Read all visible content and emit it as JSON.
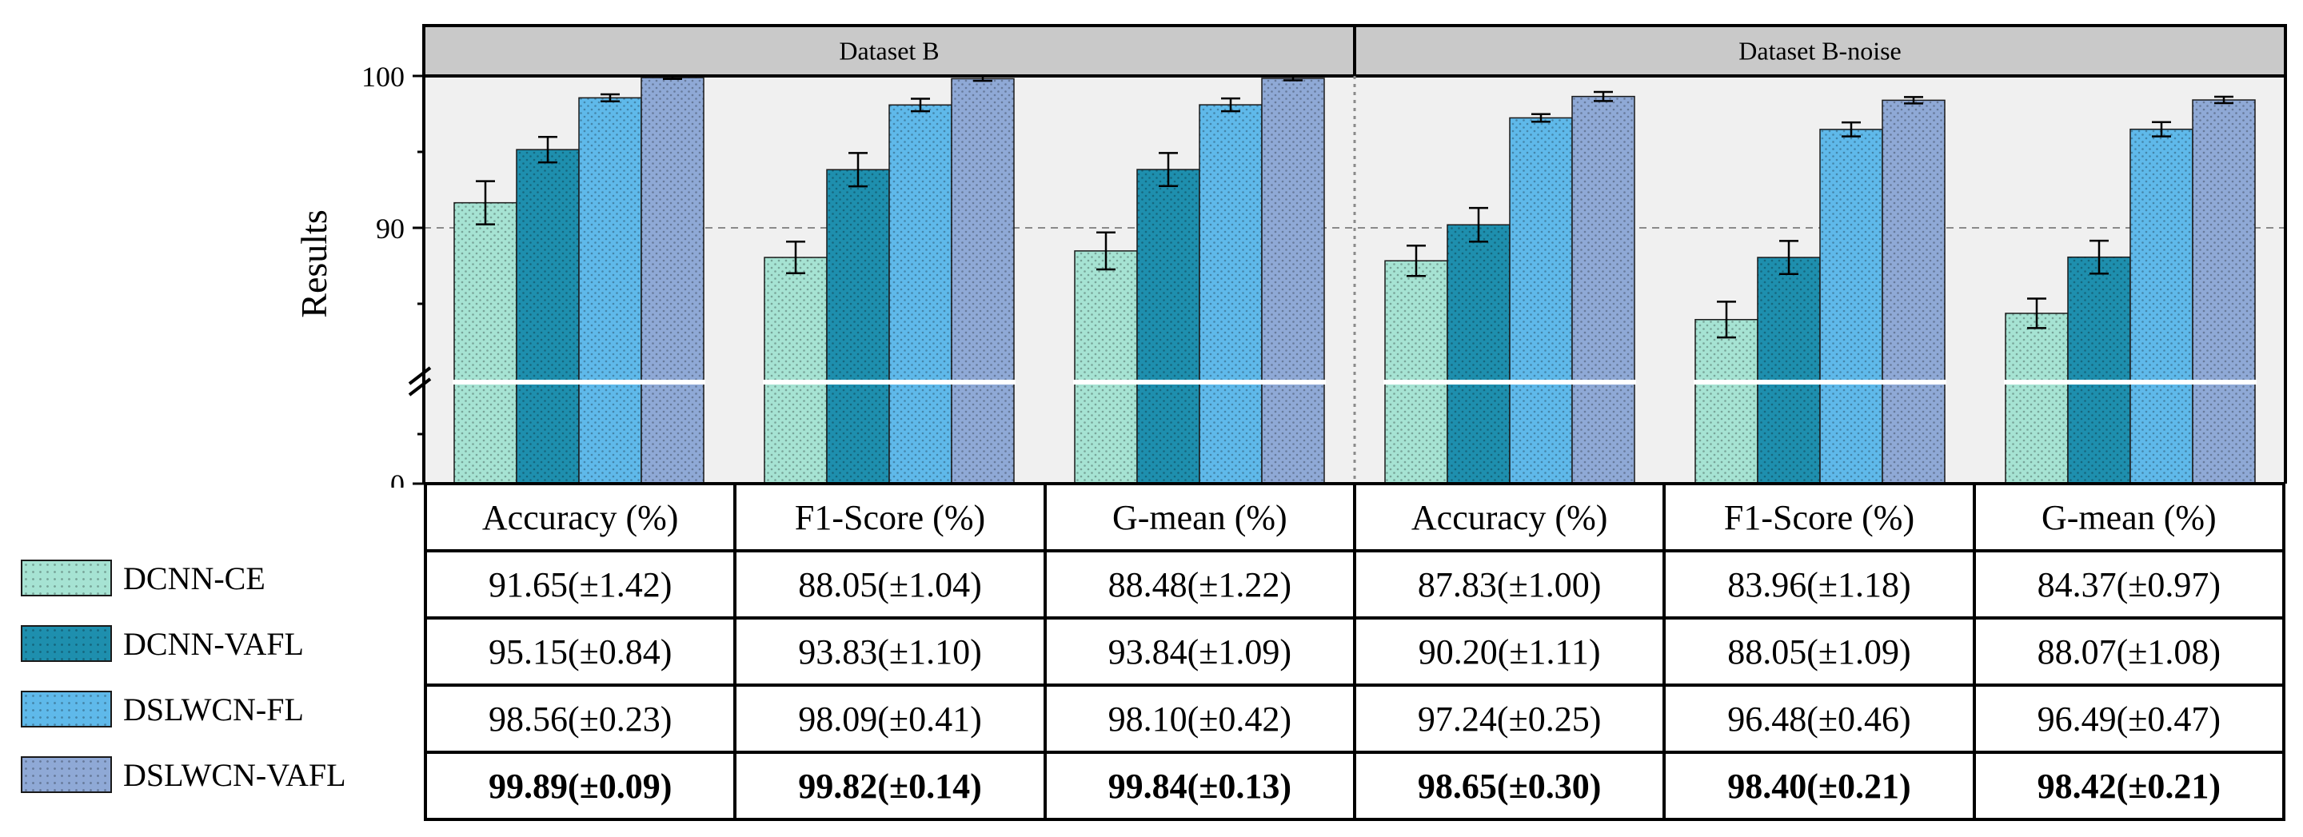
{
  "chart_data": {
    "type": "bar",
    "ylabel": "Results",
    "y_ticks": [
      "0",
      "90",
      "100"
    ],
    "y_axis_break": [
      0,
      80
    ],
    "ylim": [
      80,
      100
    ],
    "reference_line": 90,
    "panels": [
      {
        "title": "Dataset B",
        "categories": [
          "Accuracy (%)",
          "F1-Score (%)",
          "G-mean (%)"
        ],
        "series": [
          {
            "name": "DCNN-CE",
            "values": [
              91.65,
              88.05,
              88.48
            ],
            "errors": [
              1.42,
              1.04,
              1.22
            ]
          },
          {
            "name": "DCNN-VAFL",
            "values": [
              95.15,
              93.83,
              93.84
            ],
            "errors": [
              0.84,
              1.1,
              1.09
            ]
          },
          {
            "name": "DSLWCN-FL",
            "values": [
              98.56,
              98.09,
              98.1
            ],
            "errors": [
              0.23,
              0.41,
              0.42
            ]
          },
          {
            "name": "DSLWCN-VAFL",
            "values": [
              99.89,
              99.82,
              99.84
            ],
            "errors": [
              0.09,
              0.14,
              0.13
            ]
          }
        ]
      },
      {
        "title": "Dataset B-noise",
        "categories": [
          "Accuracy (%)",
          "F1-Score (%)",
          "G-mean (%)"
        ],
        "series": [
          {
            "name": "DCNN-CE",
            "values": [
              87.83,
              83.96,
              84.37
            ],
            "errors": [
              1.0,
              1.18,
              0.97
            ]
          },
          {
            "name": "DCNN-VAFL",
            "values": [
              90.2,
              88.05,
              88.07
            ],
            "errors": [
              1.11,
              1.09,
              1.08
            ]
          },
          {
            "name": "DSLWCN-FL",
            "values": [
              97.24,
              96.48,
              96.49
            ],
            "errors": [
              0.25,
              0.46,
              0.47
            ]
          },
          {
            "name": "DSLWCN-VAFL",
            "values": [
              98.65,
              98.4,
              98.42
            ],
            "errors": [
              0.3,
              0.21,
              0.21
            ]
          }
        ]
      }
    ]
  },
  "legend": [
    {
      "name": "DCNN-CE",
      "color": "#a6e3d3"
    },
    {
      "name": "DCNN-VAFL",
      "color": "#1e8fae"
    },
    {
      "name": "DSLWCN-FL",
      "color": "#5fb9ea"
    },
    {
      "name": "DSLWCN-VAFL",
      "color": "#8fa9d6"
    }
  ],
  "table": {
    "headers": [
      "Accuracy (%)",
      "F1-Score (%)",
      "G-mean (%)",
      "Accuracy (%)",
      "F1-Score (%)",
      "G-mean (%)"
    ],
    "rows": [
      [
        "91.65(±1.42)",
        "88.05(±1.04)",
        "88.48(±1.22)",
        "87.83(±1.00)",
        "83.96(±1.18)",
        "84.37(±0.97)"
      ],
      [
        "95.15(±0.84)",
        "93.83(±1.10)",
        "93.84(±1.09)",
        "90.20(±1.11)",
        "88.05(±1.09)",
        "88.07(±1.08)"
      ],
      [
        "98.56(±0.23)",
        "98.09(±0.41)",
        "98.10(±0.42)",
        "97.24(±0.25)",
        "96.48(±0.46)",
        "96.49(±0.47)"
      ],
      [
        "99.89(±0.09)",
        "99.82(±0.14)",
        "99.84(±0.13)",
        "98.65(±0.30)",
        "98.40(±0.21)",
        "98.42(±0.21)"
      ]
    ]
  }
}
